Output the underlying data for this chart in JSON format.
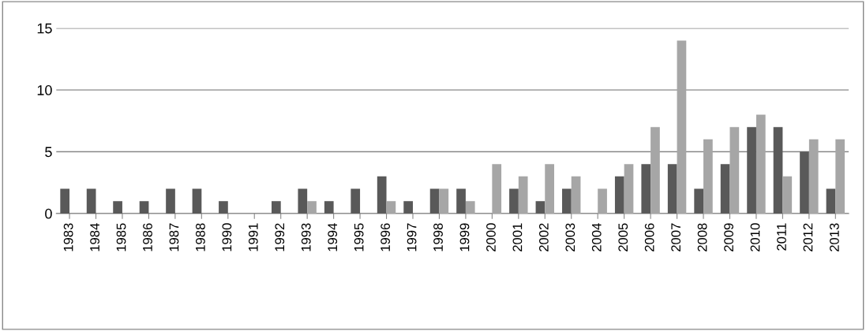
{
  "chart_data": {
    "type": "bar",
    "categories": [
      "1983",
      "1984",
      "1985",
      "1986",
      "1987",
      "1988",
      "1990",
      "1991",
      "1992",
      "1993",
      "1994",
      "1995",
      "1996",
      "1997",
      "1998",
      "1999",
      "2000",
      "2001",
      "2002",
      "2003",
      "2004",
      "2005",
      "2006",
      "2007",
      "2008",
      "2009",
      "2010",
      "2011",
      "2012",
      "2013"
    ],
    "series": [
      {
        "color": "#595959",
        "values": [
          2,
          2,
          1,
          1,
          2,
          2,
          1,
          0,
          1,
          2,
          1,
          2,
          3,
          1,
          2,
          2,
          0,
          2,
          1,
          2,
          0,
          3,
          4,
          4,
          2,
          4,
          7,
          7,
          5,
          2
        ]
      },
      {
        "color": "#a6a6a6",
        "values": [
          0,
          0,
          0,
          0,
          0,
          0,
          0,
          0,
          0,
          1,
          0,
          0,
          1,
          0,
          2,
          1,
          4,
          3,
          4,
          3,
          2,
          4,
          7,
          14,
          6,
          7,
          8,
          3,
          6,
          6
        ]
      }
    ],
    "ylim": [
      0,
      15
    ],
    "yticks": [
      0,
      5,
      10,
      15
    ],
    "grid": "y"
  }
}
